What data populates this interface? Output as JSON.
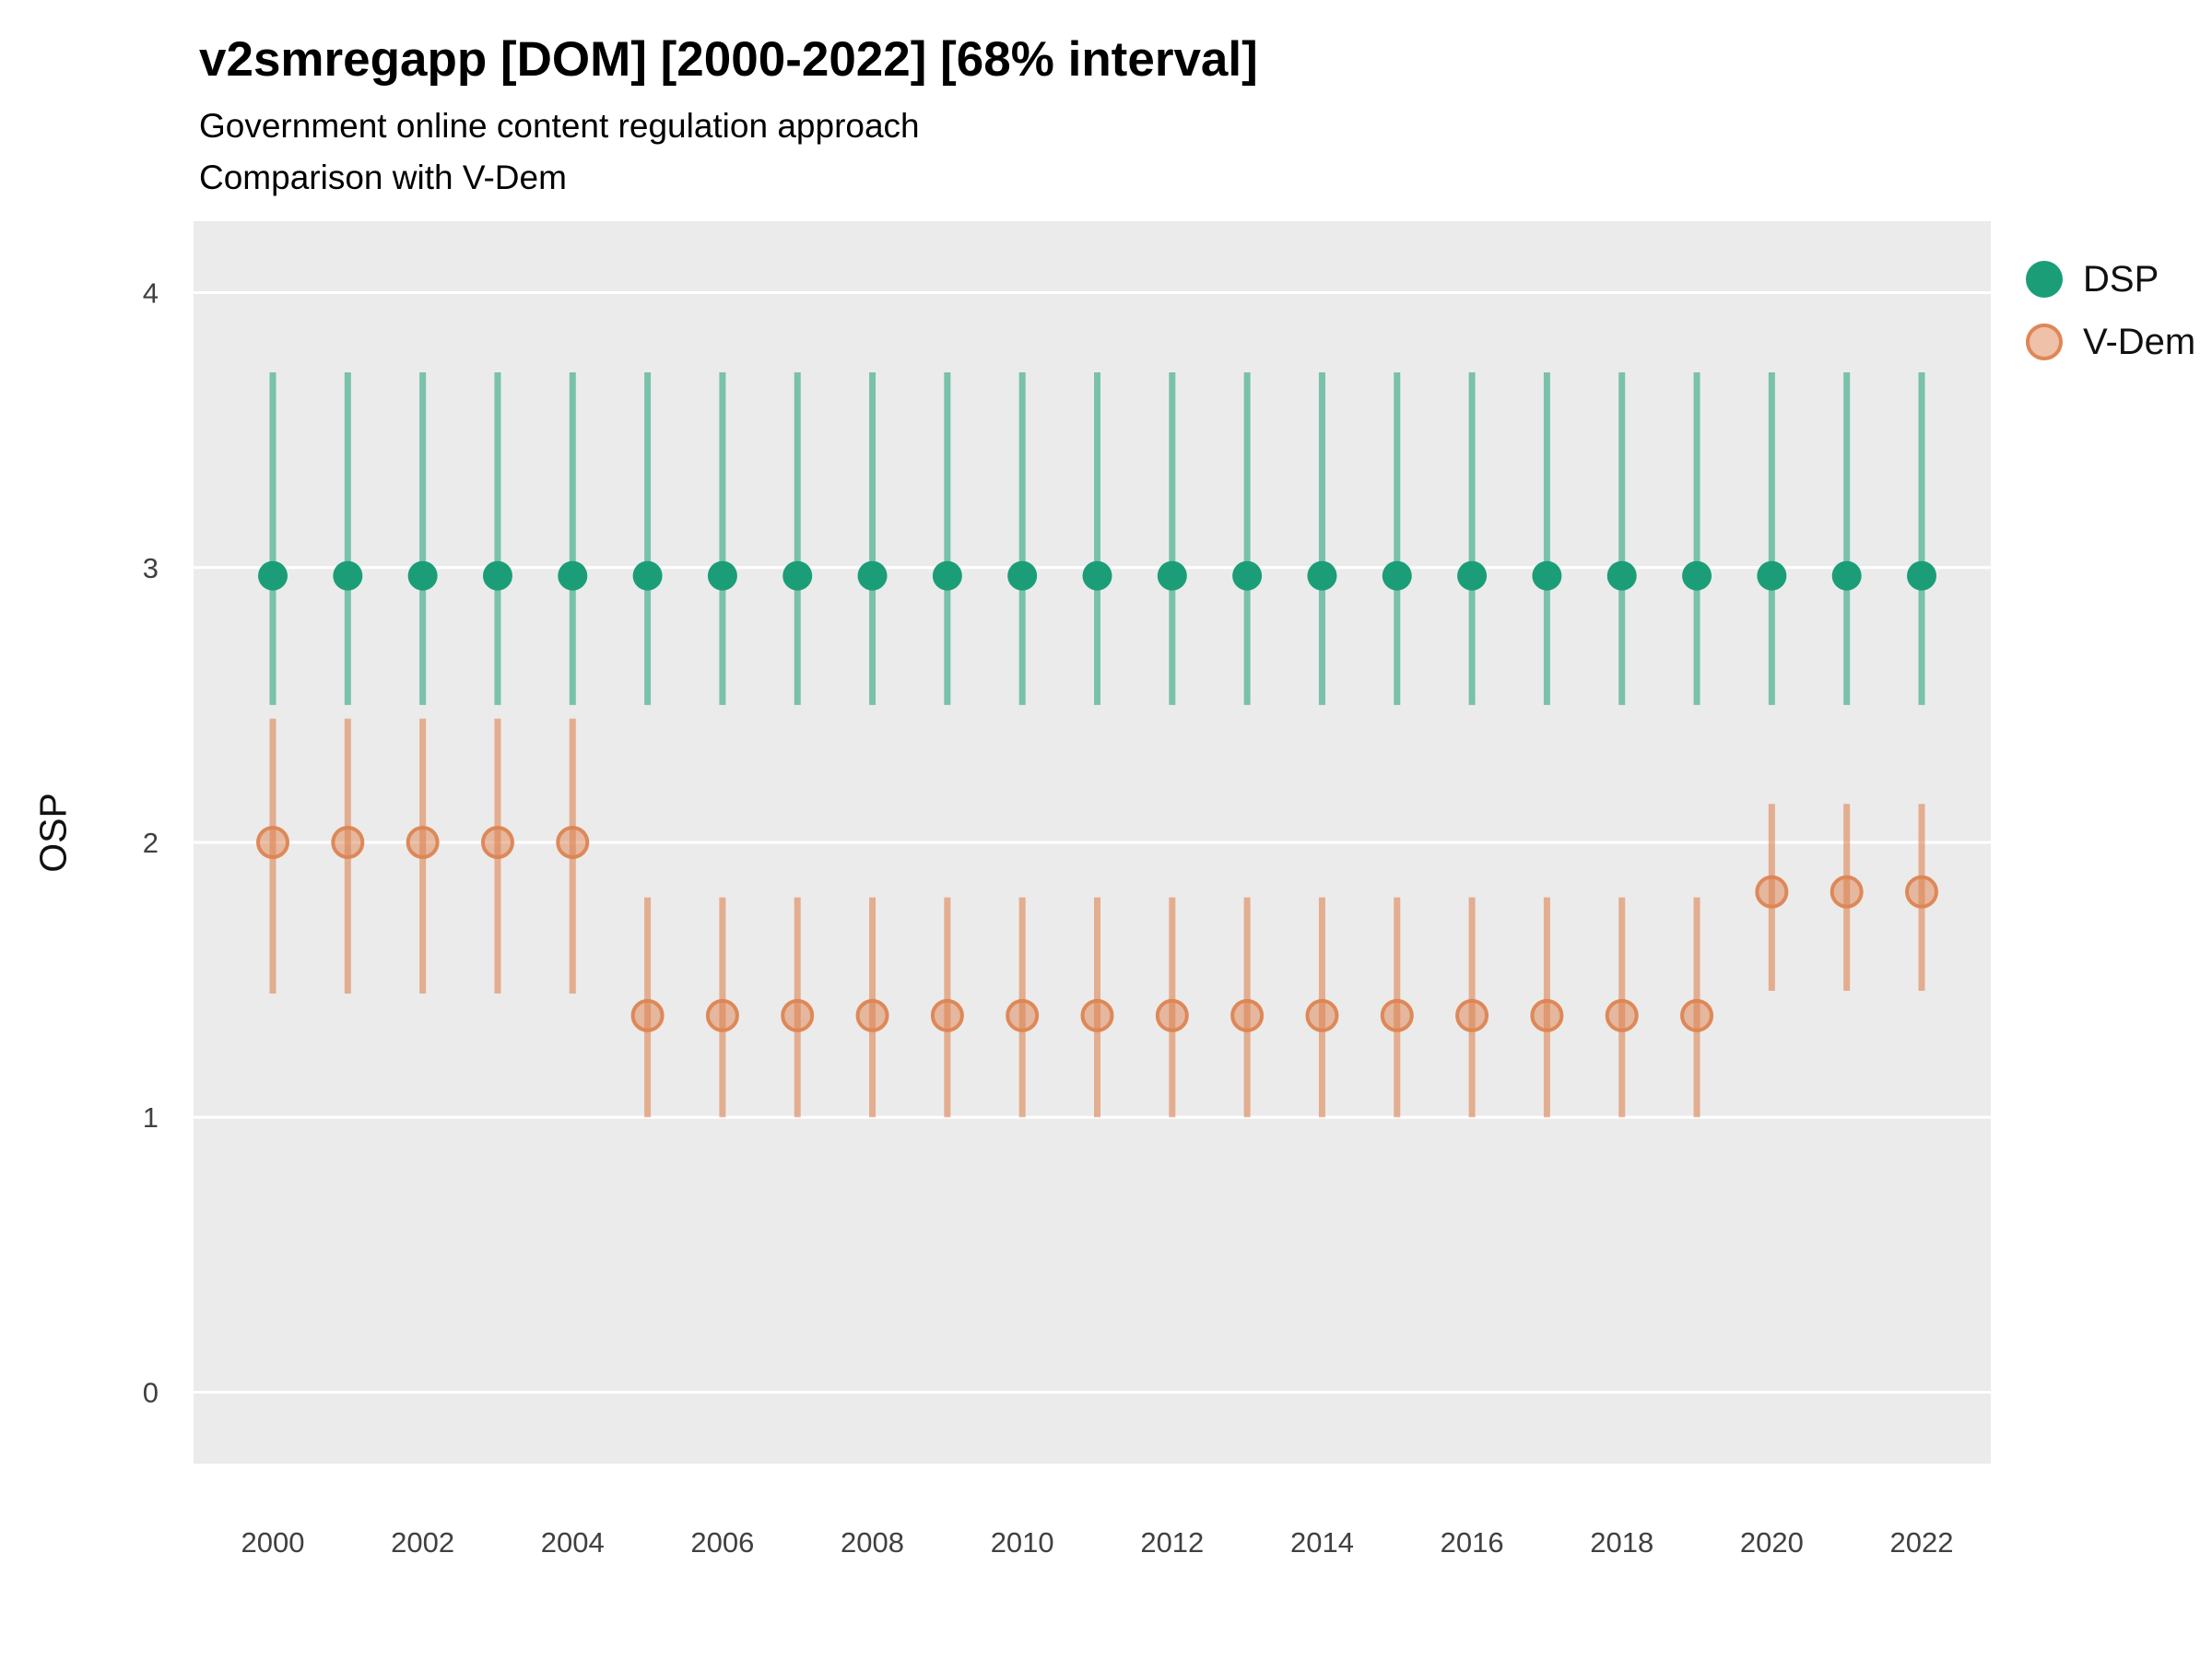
{
  "header": {
    "title": "v2smregapp [DOM] [2000-2022] [68% interval]",
    "subtitle": "Government online content regulation approach",
    "subtitle2": "Comparison with V-Dem"
  },
  "chart_data": {
    "type": "pointrange",
    "title": "v2smregapp [DOM] [2000-2022] [68% interval]",
    "subtitle": "Government online content regulation approach",
    "subtitle2": "Comparison with V-Dem",
    "interval_label": "68% interval",
    "xlabel": "",
    "ylabel": "OSP",
    "panel_bg": "#EBEBEB",
    "grid": "major-horizontal-white",
    "legend_position": "right-top",
    "ylim": [
      -0.26,
      4.26
    ],
    "yticks": [
      0,
      1,
      2,
      3,
      4
    ],
    "xticks": [
      2000,
      2002,
      2004,
      2006,
      2008,
      2010,
      2012,
      2014,
      2016,
      2018,
      2020,
      2022
    ],
    "x": [
      2000,
      2001,
      2002,
      2003,
      2004,
      2005,
      2006,
      2007,
      2008,
      2009,
      2010,
      2011,
      2012,
      2013,
      2014,
      2015,
      2016,
      2017,
      2018,
      2019,
      2020,
      2021,
      2022
    ],
    "series": [
      {
        "name": "DSP",
        "color": "#1b9e77",
        "values": [
          2.97,
          2.97,
          2.97,
          2.97,
          2.97,
          2.97,
          2.97,
          2.97,
          2.97,
          2.97,
          2.97,
          2.97,
          2.97,
          2.97,
          2.97,
          2.97,
          2.97,
          2.97,
          2.97,
          2.97,
          2.97,
          2.97,
          2.97
        ],
        "lower": [
          2.5,
          2.5,
          2.5,
          2.5,
          2.5,
          2.5,
          2.5,
          2.5,
          2.5,
          2.5,
          2.5,
          2.5,
          2.5,
          2.5,
          2.5,
          2.5,
          2.5,
          2.5,
          2.5,
          2.5,
          2.5,
          2.5,
          2.5
        ],
        "upper": [
          3.71,
          3.71,
          3.71,
          3.71,
          3.71,
          3.71,
          3.71,
          3.71,
          3.71,
          3.71,
          3.71,
          3.71,
          3.71,
          3.71,
          3.71,
          3.71,
          3.71,
          3.71,
          3.71,
          3.71,
          3.71,
          3.71,
          3.71
        ]
      },
      {
        "name": "V-Dem",
        "color": "#DD8452",
        "values": [
          2.0,
          2.0,
          2.0,
          2.0,
          2.0,
          1.37,
          1.37,
          1.37,
          1.37,
          1.37,
          1.37,
          1.37,
          1.37,
          1.37,
          1.37,
          1.37,
          1.37,
          1.37,
          1.37,
          1.37,
          1.82,
          1.82,
          1.82
        ],
        "lower": [
          1.45,
          1.45,
          1.45,
          1.45,
          1.45,
          1.0,
          1.0,
          1.0,
          1.0,
          1.0,
          1.0,
          1.0,
          1.0,
          1.0,
          1.0,
          1.0,
          1.0,
          1.0,
          1.0,
          1.0,
          1.46,
          1.46,
          1.46
        ],
        "upper": [
          2.45,
          2.45,
          2.45,
          2.45,
          2.45,
          1.8,
          1.8,
          1.8,
          1.8,
          1.8,
          1.8,
          1.8,
          1.8,
          1.8,
          1.8,
          1.8,
          1.8,
          1.8,
          1.8,
          1.8,
          2.14,
          2.14,
          2.14
        ]
      }
    ]
  }
}
